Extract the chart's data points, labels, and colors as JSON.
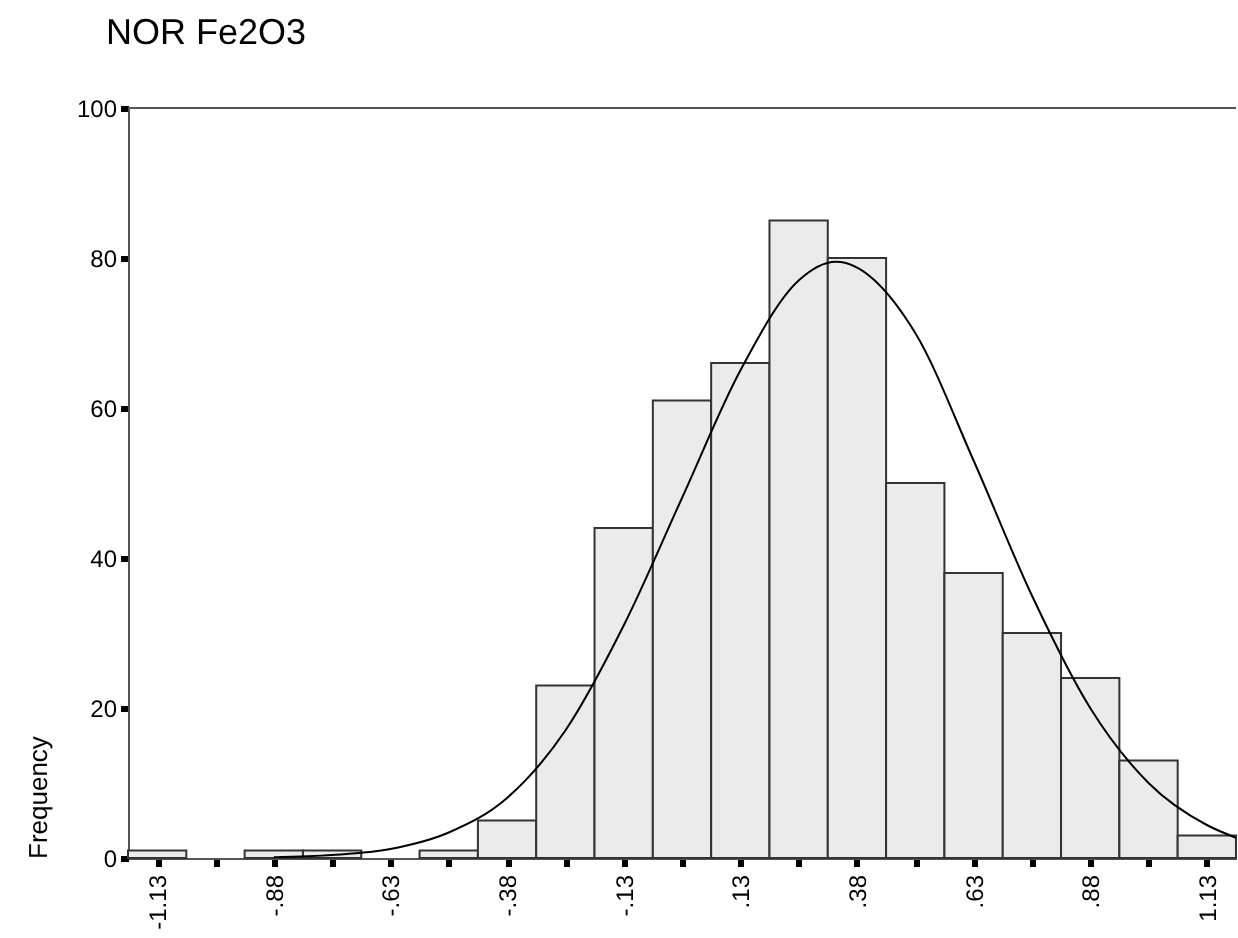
{
  "chart_data": {
    "type": "histogram",
    "title": "NOR Fe2O3",
    "ylabel": "Frequency",
    "bins": [
      -1.1875,
      -1.0625,
      -0.9375,
      -0.8125,
      -0.6875,
      -0.5625,
      -0.4375,
      -0.3125,
      -0.1875,
      -0.0625,
      0.0625,
      0.1875,
      0.3125,
      0.4375,
      0.5625,
      0.6875,
      0.8125,
      0.9375,
      1.0625,
      1.1875
    ],
    "values": [
      1,
      0,
      1,
      1,
      0,
      1,
      5,
      23,
      44,
      61,
      66,
      85,
      80,
      50,
      38,
      30,
      24,
      13,
      3
    ],
    "color": "#ebebeb",
    "series": [
      {
        "type": "line",
        "color": "#000000",
        "x": [
          -0.875,
          -0.75,
          -0.625,
          -0.5,
          -0.375,
          -0.25,
          -0.125,
          0,
          0.125,
          0.25,
          0.33,
          0.5,
          0.625,
          0.75,
          0.875,
          1.0,
          1.125,
          1.1875
        ],
        "values": [
          0.1,
          0.4,
          1.2,
          3.4,
          8,
          17,
          31,
          48,
          65,
          77,
          79.5,
          70,
          53,
          35,
          20,
          10,
          4.4,
          2.7
        ]
      }
    ],
    "xlim": [
      -1.1875,
      1.1875
    ],
    "xticks": [
      {
        "value": -1.125,
        "label": "-1.13"
      },
      {
        "value": -1.0,
        "label": null
      },
      {
        "value": -0.875,
        "label": "-.88"
      },
      {
        "value": -0.75,
        "label": null
      },
      {
        "value": -0.625,
        "label": "-.63"
      },
      {
        "value": -0.5,
        "label": null
      },
      {
        "value": -0.375,
        "label": "-.38"
      },
      {
        "value": -0.25,
        "label": null
      },
      {
        "value": -0.125,
        "label": "-.13"
      },
      {
        "value": 0,
        "label": null
      },
      {
        "value": 0.125,
        "label": ".13"
      },
      {
        "value": 0.25,
        "label": null
      },
      {
        "value": 0.375,
        "label": ".38"
      },
      {
        "value": 0.5,
        "label": null
      },
      {
        "value": 0.625,
        "label": ".63"
      },
      {
        "value": 0.75,
        "label": null
      },
      {
        "value": 0.875,
        "label": ".88"
      },
      {
        "value": 1.0,
        "label": null
      },
      {
        "value": 1.125,
        "label": "1.13"
      }
    ],
    "ylim": [
      0,
      100
    ],
    "yticks": [
      0,
      20,
      40,
      60,
      80,
      100
    ]
  }
}
